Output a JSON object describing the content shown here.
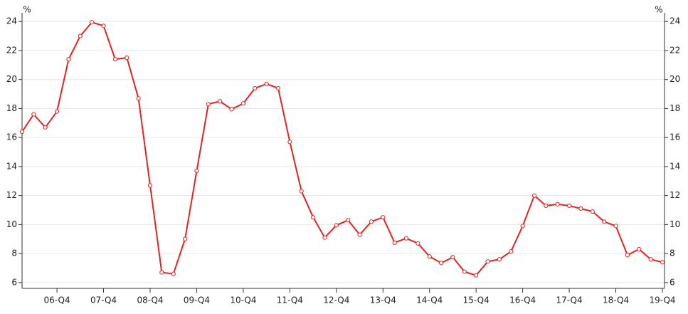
{
  "chart_data": {
    "type": "line",
    "y_label": "%",
    "y2_label": "%",
    "categories": [
      null,
      null,
      null,
      "06-Q4",
      null,
      null,
      null,
      "07-Q4",
      null,
      null,
      null,
      "08-Q4",
      null,
      null,
      null,
      "09-Q4",
      null,
      null,
      null,
      "10-Q4",
      null,
      null,
      null,
      "11-Q4",
      null,
      null,
      null,
      "12-Q4",
      null,
      null,
      null,
      "13-Q4",
      null,
      null,
      null,
      "14-Q4",
      null,
      null,
      null,
      "15-Q4",
      null,
      null,
      null,
      "16-Q4",
      null,
      null,
      null,
      "17-Q4",
      null,
      null,
      null,
      "18-Q4",
      null,
      null,
      null,
      "19-Q4"
    ],
    "series": [
      {
        "name": null,
        "color": "#e82020",
        "values": [
          16.4,
          17.6,
          16.7,
          17.8,
          21.4,
          23.0,
          23.95,
          23.7,
          21.4,
          21.5,
          18.7,
          12.7,
          6.7,
          6.6,
          9.0,
          13.7,
          18.3,
          18.5,
          17.95,
          18.35,
          19.4,
          19.7,
          19.4,
          15.7,
          12.3,
          10.5,
          9.1,
          9.95,
          10.3,
          9.3,
          10.2,
          10.5,
          8.75,
          9.05,
          8.7,
          7.8,
          7.35,
          7.75,
          6.75,
          6.5,
          7.45,
          7.6,
          8.15,
          9.9,
          12.0,
          11.3,
          11.4,
          11.3,
          11.1,
          10.9,
          10.2,
          9.9,
          7.9,
          8.3,
          7.6,
          7.4
        ]
      }
    ],
    "ylim": [
      5.6,
      24.6
    ],
    "yticks": [
      6,
      8,
      10,
      12,
      14,
      16,
      18,
      20,
      22,
      24
    ],
    "y2lim": [
      5.6,
      24.6
    ],
    "y2ticks": [
      6,
      8,
      10,
      12,
      14,
      16,
      18,
      20,
      22,
      24
    ],
    "grid": true
  }
}
